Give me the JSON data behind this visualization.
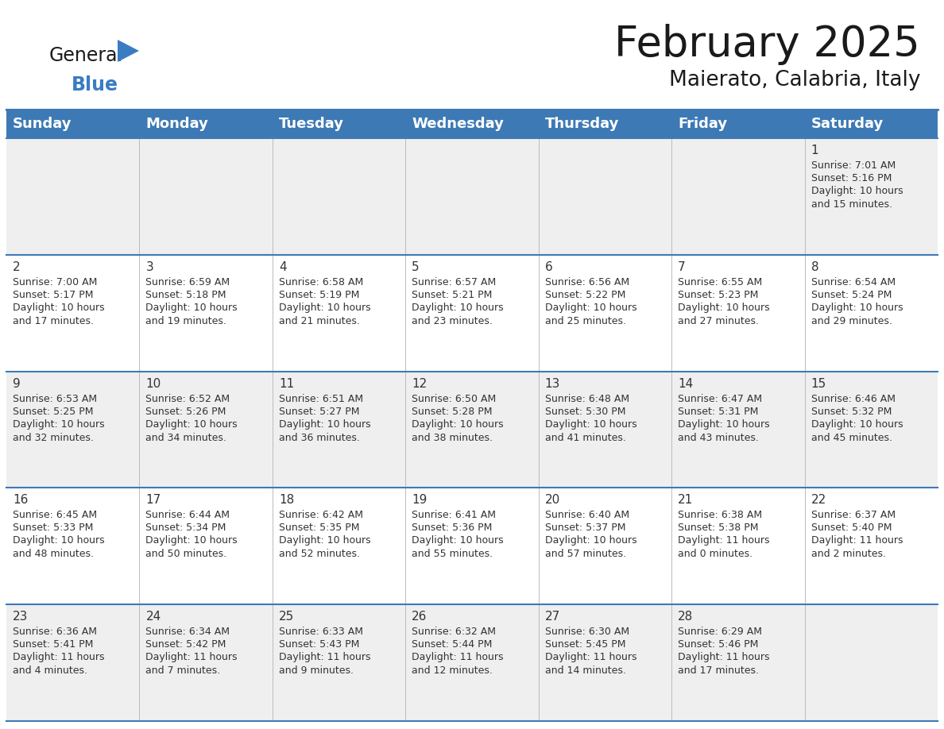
{
  "title": "February 2025",
  "subtitle": "Maierato, Calabria, Italy",
  "header_bg": "#3d7ab5",
  "header_text": "#FFFFFF",
  "cell_bg_odd": "#efefef",
  "cell_bg_even": "#FFFFFF",
  "day_names": [
    "Sunday",
    "Monday",
    "Tuesday",
    "Wednesday",
    "Thursday",
    "Friday",
    "Saturday"
  ],
  "title_fontsize": 38,
  "subtitle_fontsize": 19,
  "header_fontsize": 13,
  "day_num_fontsize": 11,
  "cell_text_fontsize": 9,
  "logo_general_color": "#1a1a1a",
  "logo_blue_color": "#3A7CC2",
  "logo_triangle_color": "#3A7CC2",
  "border_color": "#3d7ab5",
  "text_color": "#333333",
  "weeks": [
    [
      {
        "day": "",
        "sunrise": "",
        "sunset": "",
        "daylight": ""
      },
      {
        "day": "",
        "sunrise": "",
        "sunset": "",
        "daylight": ""
      },
      {
        "day": "",
        "sunrise": "",
        "sunset": "",
        "daylight": ""
      },
      {
        "day": "",
        "sunrise": "",
        "sunset": "",
        "daylight": ""
      },
      {
        "day": "",
        "sunrise": "",
        "sunset": "",
        "daylight": ""
      },
      {
        "day": "",
        "sunrise": "",
        "sunset": "",
        "daylight": ""
      },
      {
        "day": "1",
        "sunrise": "Sunrise: 7:01 AM",
        "sunset": "Sunset: 5:16 PM",
        "daylight": "Daylight: 10 hours\nand 15 minutes."
      }
    ],
    [
      {
        "day": "2",
        "sunrise": "Sunrise: 7:00 AM",
        "sunset": "Sunset: 5:17 PM",
        "daylight": "Daylight: 10 hours\nand 17 minutes."
      },
      {
        "day": "3",
        "sunrise": "Sunrise: 6:59 AM",
        "sunset": "Sunset: 5:18 PM",
        "daylight": "Daylight: 10 hours\nand 19 minutes."
      },
      {
        "day": "4",
        "sunrise": "Sunrise: 6:58 AM",
        "sunset": "Sunset: 5:19 PM",
        "daylight": "Daylight: 10 hours\nand 21 minutes."
      },
      {
        "day": "5",
        "sunrise": "Sunrise: 6:57 AM",
        "sunset": "Sunset: 5:21 PM",
        "daylight": "Daylight: 10 hours\nand 23 minutes."
      },
      {
        "day": "6",
        "sunrise": "Sunrise: 6:56 AM",
        "sunset": "Sunset: 5:22 PM",
        "daylight": "Daylight: 10 hours\nand 25 minutes."
      },
      {
        "day": "7",
        "sunrise": "Sunrise: 6:55 AM",
        "sunset": "Sunset: 5:23 PM",
        "daylight": "Daylight: 10 hours\nand 27 minutes."
      },
      {
        "day": "8",
        "sunrise": "Sunrise: 6:54 AM",
        "sunset": "Sunset: 5:24 PM",
        "daylight": "Daylight: 10 hours\nand 29 minutes."
      }
    ],
    [
      {
        "day": "9",
        "sunrise": "Sunrise: 6:53 AM",
        "sunset": "Sunset: 5:25 PM",
        "daylight": "Daylight: 10 hours\nand 32 minutes."
      },
      {
        "day": "10",
        "sunrise": "Sunrise: 6:52 AM",
        "sunset": "Sunset: 5:26 PM",
        "daylight": "Daylight: 10 hours\nand 34 minutes."
      },
      {
        "day": "11",
        "sunrise": "Sunrise: 6:51 AM",
        "sunset": "Sunset: 5:27 PM",
        "daylight": "Daylight: 10 hours\nand 36 minutes."
      },
      {
        "day": "12",
        "sunrise": "Sunrise: 6:50 AM",
        "sunset": "Sunset: 5:28 PM",
        "daylight": "Daylight: 10 hours\nand 38 minutes."
      },
      {
        "day": "13",
        "sunrise": "Sunrise: 6:48 AM",
        "sunset": "Sunset: 5:30 PM",
        "daylight": "Daylight: 10 hours\nand 41 minutes."
      },
      {
        "day": "14",
        "sunrise": "Sunrise: 6:47 AM",
        "sunset": "Sunset: 5:31 PM",
        "daylight": "Daylight: 10 hours\nand 43 minutes."
      },
      {
        "day": "15",
        "sunrise": "Sunrise: 6:46 AM",
        "sunset": "Sunset: 5:32 PM",
        "daylight": "Daylight: 10 hours\nand 45 minutes."
      }
    ],
    [
      {
        "day": "16",
        "sunrise": "Sunrise: 6:45 AM",
        "sunset": "Sunset: 5:33 PM",
        "daylight": "Daylight: 10 hours\nand 48 minutes."
      },
      {
        "day": "17",
        "sunrise": "Sunrise: 6:44 AM",
        "sunset": "Sunset: 5:34 PM",
        "daylight": "Daylight: 10 hours\nand 50 minutes."
      },
      {
        "day": "18",
        "sunrise": "Sunrise: 6:42 AM",
        "sunset": "Sunset: 5:35 PM",
        "daylight": "Daylight: 10 hours\nand 52 minutes."
      },
      {
        "day": "19",
        "sunrise": "Sunrise: 6:41 AM",
        "sunset": "Sunset: 5:36 PM",
        "daylight": "Daylight: 10 hours\nand 55 minutes."
      },
      {
        "day": "20",
        "sunrise": "Sunrise: 6:40 AM",
        "sunset": "Sunset: 5:37 PM",
        "daylight": "Daylight: 10 hours\nand 57 minutes."
      },
      {
        "day": "21",
        "sunrise": "Sunrise: 6:38 AM",
        "sunset": "Sunset: 5:38 PM",
        "daylight": "Daylight: 11 hours\nand 0 minutes."
      },
      {
        "day": "22",
        "sunrise": "Sunrise: 6:37 AM",
        "sunset": "Sunset: 5:40 PM",
        "daylight": "Daylight: 11 hours\nand 2 minutes."
      }
    ],
    [
      {
        "day": "23",
        "sunrise": "Sunrise: 6:36 AM",
        "sunset": "Sunset: 5:41 PM",
        "daylight": "Daylight: 11 hours\nand 4 minutes."
      },
      {
        "day": "24",
        "sunrise": "Sunrise: 6:34 AM",
        "sunset": "Sunset: 5:42 PM",
        "daylight": "Daylight: 11 hours\nand 7 minutes."
      },
      {
        "day": "25",
        "sunrise": "Sunrise: 6:33 AM",
        "sunset": "Sunset: 5:43 PM",
        "daylight": "Daylight: 11 hours\nand 9 minutes."
      },
      {
        "day": "26",
        "sunrise": "Sunrise: 6:32 AM",
        "sunset": "Sunset: 5:44 PM",
        "daylight": "Daylight: 11 hours\nand 12 minutes."
      },
      {
        "day": "27",
        "sunrise": "Sunrise: 6:30 AM",
        "sunset": "Sunset: 5:45 PM",
        "daylight": "Daylight: 11 hours\nand 14 minutes."
      },
      {
        "day": "28",
        "sunrise": "Sunrise: 6:29 AM",
        "sunset": "Sunset: 5:46 PM",
        "daylight": "Daylight: 11 hours\nand 17 minutes."
      },
      {
        "day": "",
        "sunrise": "",
        "sunset": "",
        "daylight": ""
      }
    ]
  ]
}
